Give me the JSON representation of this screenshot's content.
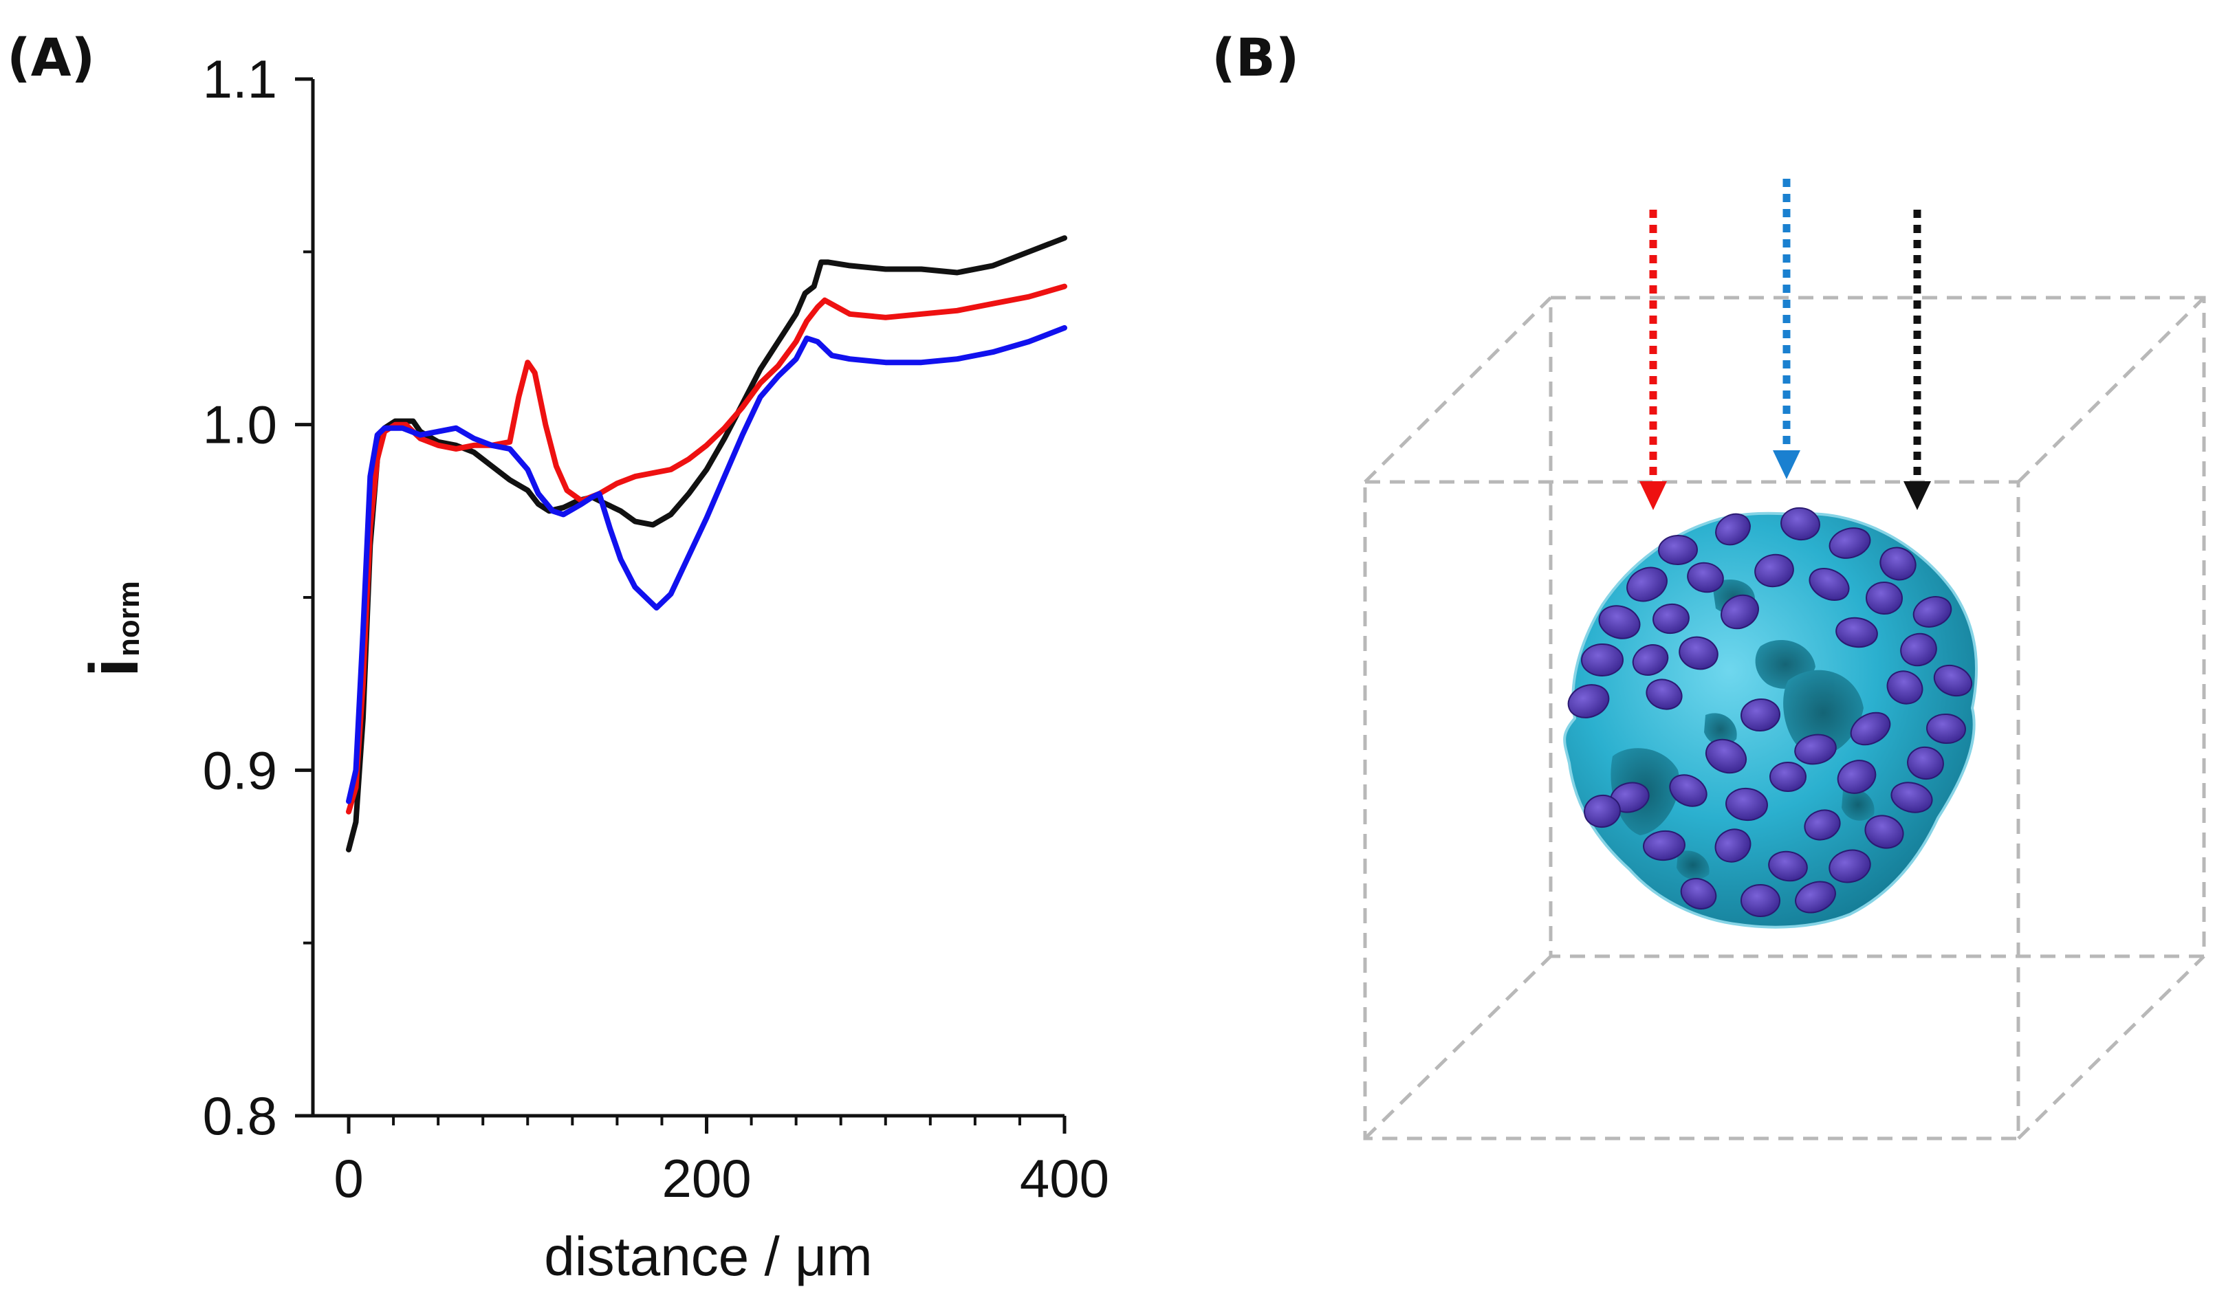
{
  "panels": {
    "a_label": "(A)",
    "b_label": "(B)"
  },
  "chart_data": {
    "type": "line",
    "title": "",
    "xlabel": "distance / μm",
    "ylabel": "i",
    "ylabel_subscript": "norm",
    "xlim": [
      -20,
      400
    ],
    "ylim": [
      0.8,
      1.1
    ],
    "xticks": [
      0,
      200,
      400
    ],
    "xtick_labels": [
      "0",
      "200",
      "400"
    ],
    "yticks": [
      0.8,
      0.9,
      1.0,
      1.1
    ],
    "ytick_labels": [
      "0.8",
      "0.9",
      "1.0",
      "1.1"
    ],
    "grid": false,
    "series": [
      {
        "name": "black",
        "color": "#111111",
        "points": [
          [
            0,
            0.877
          ],
          [
            4,
            0.885
          ],
          [
            8,
            0.915
          ],
          [
            12,
            0.965
          ],
          [
            16,
            0.99
          ],
          [
            20,
            0.999
          ],
          [
            26,
            1.001
          ],
          [
            30,
            1.001
          ],
          [
            36,
            1.001
          ],
          [
            40,
            0.998
          ],
          [
            50,
            0.995
          ],
          [
            60,
            0.994
          ],
          [
            70,
            0.992
          ],
          [
            80,
            0.988
          ],
          [
            90,
            0.984
          ],
          [
            100,
            0.981
          ],
          [
            106,
            0.977
          ],
          [
            112,
            0.975
          ],
          [
            120,
            0.976
          ],
          [
            128,
            0.978
          ],
          [
            136,
            0.979
          ],
          [
            144,
            0.977
          ],
          [
            152,
            0.975
          ],
          [
            160,
            0.972
          ],
          [
            170,
            0.971
          ],
          [
            180,
            0.974
          ],
          [
            190,
            0.98
          ],
          [
            200,
            0.987
          ],
          [
            210,
            0.996
          ],
          [
            220,
            1.006
          ],
          [
            230,
            1.016
          ],
          [
            240,
            1.024
          ],
          [
            250,
            1.032
          ],
          [
            255,
            1.038
          ],
          [
            260,
            1.04
          ],
          [
            264,
            1.047
          ],
          [
            268,
            1.047
          ],
          [
            280,
            1.046
          ],
          [
            300,
            1.045
          ],
          [
            320,
            1.045
          ],
          [
            340,
            1.044
          ],
          [
            360,
            1.046
          ],
          [
            380,
            1.05
          ],
          [
            400,
            1.054
          ]
        ]
      },
      {
        "name": "red",
        "color": "#ee1111",
        "points": [
          [
            0,
            0.888
          ],
          [
            4,
            0.895
          ],
          [
            8,
            0.925
          ],
          [
            12,
            0.97
          ],
          [
            16,
            0.99
          ],
          [
            20,
            0.998
          ],
          [
            26,
            1.0
          ],
          [
            32,
            1.0
          ],
          [
            40,
            0.996
          ],
          [
            50,
            0.994
          ],
          [
            60,
            0.993
          ],
          [
            70,
            0.994
          ],
          [
            80,
            0.994
          ],
          [
            90,
            0.995
          ],
          [
            95,
            1.008
          ],
          [
            100,
            1.018
          ],
          [
            104,
            1.015
          ],
          [
            110,
            1.0
          ],
          [
            116,
            0.988
          ],
          [
            122,
            0.981
          ],
          [
            130,
            0.978
          ],
          [
            140,
            0.98
          ],
          [
            150,
            0.983
          ],
          [
            160,
            0.985
          ],
          [
            170,
            0.986
          ],
          [
            180,
            0.987
          ],
          [
            190,
            0.99
          ],
          [
            200,
            0.994
          ],
          [
            210,
            0.999
          ],
          [
            220,
            1.005
          ],
          [
            230,
            1.012
          ],
          [
            240,
            1.017
          ],
          [
            250,
            1.024
          ],
          [
            256,
            1.03
          ],
          [
            262,
            1.034
          ],
          [
            266,
            1.036
          ],
          [
            280,
            1.032
          ],
          [
            300,
            1.031
          ],
          [
            320,
            1.032
          ],
          [
            340,
            1.033
          ],
          [
            360,
            1.035
          ],
          [
            380,
            1.037
          ],
          [
            400,
            1.04
          ]
        ]
      },
      {
        "name": "blue",
        "color": "#1111ee",
        "points": [
          [
            0,
            0.891
          ],
          [
            4,
            0.9
          ],
          [
            8,
            0.94
          ],
          [
            12,
            0.985
          ],
          [
            16,
            0.997
          ],
          [
            20,
            0.999
          ],
          [
            30,
            0.999
          ],
          [
            40,
            0.997
          ],
          [
            50,
            0.998
          ],
          [
            60,
            0.999
          ],
          [
            70,
            0.996
          ],
          [
            80,
            0.994
          ],
          [
            90,
            0.993
          ],
          [
            100,
            0.987
          ],
          [
            106,
            0.98
          ],
          [
            114,
            0.975
          ],
          [
            120,
            0.974
          ],
          [
            130,
            0.977
          ],
          [
            136,
            0.979
          ],
          [
            140,
            0.98
          ],
          [
            146,
            0.97
          ],
          [
            152,
            0.961
          ],
          [
            160,
            0.953
          ],
          [
            168,
            0.949
          ],
          [
            172,
            0.947
          ],
          [
            180,
            0.951
          ],
          [
            190,
            0.962
          ],
          [
            200,
            0.973
          ],
          [
            210,
            0.985
          ],
          [
            220,
            0.997
          ],
          [
            230,
            1.008
          ],
          [
            240,
            1.014
          ],
          [
            250,
            1.019
          ],
          [
            256,
            1.025
          ],
          [
            262,
            1.024
          ],
          [
            270,
            1.02
          ],
          [
            280,
            1.019
          ],
          [
            300,
            1.018
          ],
          [
            320,
            1.018
          ],
          [
            340,
            1.019
          ],
          [
            360,
            1.021
          ],
          [
            380,
            1.024
          ],
          [
            400,
            1.028
          ]
        ]
      }
    ]
  },
  "illustration": {
    "arrow_colors": [
      "#ee1111",
      "#1a80d0",
      "#111111"
    ],
    "sphere_color": "#2bb0cf",
    "cell_color": "#4a2fa8"
  }
}
